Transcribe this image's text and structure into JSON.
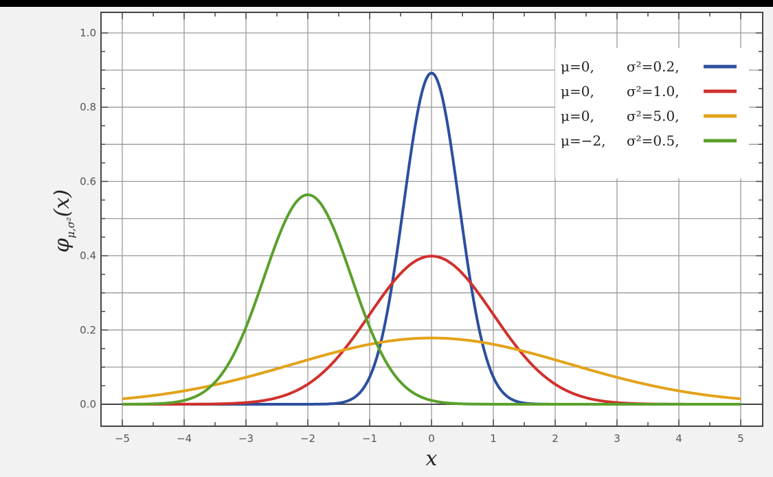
{
  "chart_data": {
    "type": "line",
    "title": "",
    "xlabel": "x",
    "ylabel": "φ",
    "ylabel_subscript": "μ,σ²",
    "ylabel_suffix": "(x)",
    "xlim": [
      -5,
      5
    ],
    "ylim": [
      0,
      1.0
    ],
    "xticks": [
      -5,
      -4,
      -3,
      -2,
      -1,
      0,
      1,
      2,
      3,
      4,
      5
    ],
    "xtick_labels": [
      "−5",
      "−4",
      "−3",
      "−2",
      "−1",
      "0",
      "1",
      "2",
      "3",
      "4",
      "5"
    ],
    "yticks": [
      0,
      0.2,
      0.4,
      0.6,
      0.8,
      1.0
    ],
    "ytick_labels": [
      "0.0",
      "0.2",
      "0.4",
      "0.6",
      "0.8",
      "1.0"
    ],
    "grid": true,
    "legend_position": "top-right",
    "series": [
      {
        "name": "μ=0,   σ²=0.2,",
        "mu_label": "μ=0,",
        "var_label": "σ²=0.2,",
        "mu": 0,
        "variance": 0.2,
        "color": "#2c4f9e"
      },
      {
        "name": "μ=0,   σ²=1.0,",
        "mu_label": "μ=0,",
        "var_label": "σ²=1.0,",
        "mu": 0,
        "variance": 1.0,
        "color": "#d0312d"
      },
      {
        "name": "μ=0,   σ²=5.0,",
        "mu_label": "μ=0,",
        "var_label": "σ²=5.0,",
        "mu": 0,
        "variance": 5.0,
        "color": "#e3a21a"
      },
      {
        "name": "μ=−2, σ²=0.5,",
        "mu_label": "μ=−2,",
        "var_label": "σ²=0.5,",
        "mu": -2,
        "variance": 0.5,
        "color": "#5aa02c"
      }
    ]
  }
}
